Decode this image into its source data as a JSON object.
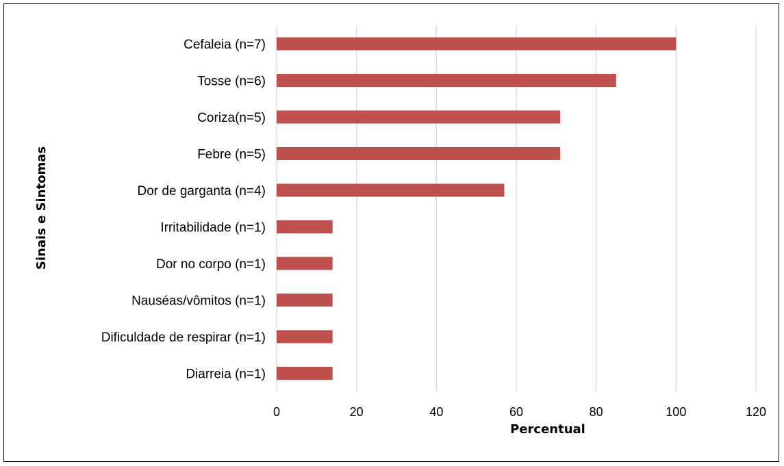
{
  "colors": {
    "bar": "#c0504d",
    "grid": "#d9d9d9",
    "frame": "#000000"
  },
  "chart_data": {
    "type": "bar",
    "orientation": "horizontal",
    "categories": [
      "Cefaleia (n=7)",
      "Tosse (n=6)",
      "Coriza(n=5)",
      "Febre (n=5)",
      "Dor de garganta (n=4)",
      "Irritabilidade (n=1)",
      "Dor no corpo (n=1)",
      "Nauséas/vômitos (n=1)",
      "Dificuldade de respirar (n=1)",
      "Diarreia (n=1)"
    ],
    "values": [
      100,
      85,
      71,
      71,
      57,
      14,
      14,
      14,
      14,
      14
    ],
    "xlabel": "Percentual",
    "ylabel": "Sinais e Sintomas",
    "xlim": [
      0,
      120
    ],
    "xticks": [
      "0",
      "20",
      "40",
      "60",
      "80",
      "100",
      "120"
    ],
    "grid": "vertical",
    "legend": "none"
  }
}
